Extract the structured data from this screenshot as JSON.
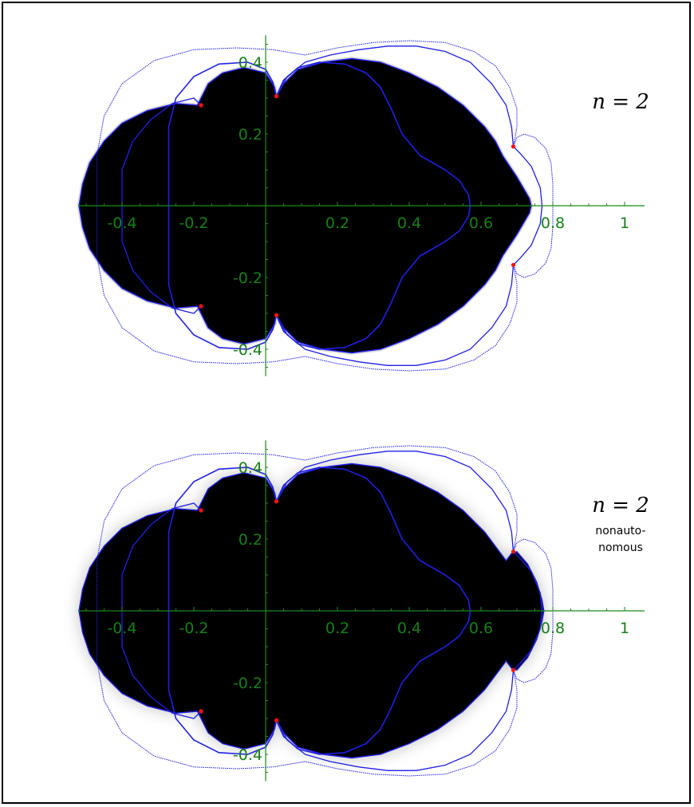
{
  "chart_data": [
    {
      "type": "scatter",
      "panel": "top",
      "label_lines": [
        "n = 2"
      ],
      "x_ticks": [
        -0.4,
        -0.2,
        0.2,
        0.4,
        0.6,
        0.8,
        1
      ],
      "x_tick_labels": [
        "-0.4",
        "-0.2",
        "0.2",
        "0.4",
        "0.6",
        "0.8",
        "1"
      ],
      "y_ticks": [
        0.4,
        0.2,
        -0.2,
        -0.4
      ],
      "y_tick_labels": [
        "0.4",
        "0.2",
        "-0.2",
        "-0.4"
      ],
      "xlim": [
        -0.52,
        1.04
      ],
      "ylim": [
        -0.47,
        0.47
      ],
      "grid": false,
      "curve_color": "#1f1fe6",
      "point_color": "#ff1010",
      "axis_color": "#1a8a1a",
      "fill_color": "#000000",
      "critical_points": [
        {
          "x": -0.18,
          "y": 0.28
        },
        {
          "x": -0.18,
          "y": -0.28
        },
        {
          "x": 0.03,
          "y": 0.305
        },
        {
          "x": 0.03,
          "y": -0.305
        },
        {
          "x": 0.69,
          "y": 0.165
        },
        {
          "x": 0.69,
          "y": -0.165
        }
      ]
    },
    {
      "type": "scatter",
      "panel": "bottom",
      "label_lines": [
        "n = 2",
        "nonauto-",
        "nomous"
      ],
      "x_ticks": [
        -0.4,
        -0.2,
        0.2,
        0.4,
        0.6,
        0.8,
        1
      ],
      "x_tick_labels": [
        "-0.4",
        "-0.2",
        "0.2",
        "0.4",
        "0.6",
        "0.8",
        "1"
      ],
      "y_ticks": [
        0.4,
        0.2,
        -0.2,
        -0.4
      ],
      "y_tick_labels": [
        "0.4",
        "0.2",
        "-0.2",
        "-0.4"
      ],
      "xlim": [
        -0.52,
        1.04
      ],
      "ylim": [
        -0.47,
        0.47
      ],
      "grid": false,
      "curve_color": "#1f1fe6",
      "point_color": "#ff1010",
      "axis_color": "#1a8a1a",
      "fill_color": "#000000",
      "critical_points": [
        {
          "x": -0.18,
          "y": 0.28
        },
        {
          "x": -0.18,
          "y": -0.28
        },
        {
          "x": 0.03,
          "y": 0.305
        },
        {
          "x": 0.03,
          "y": -0.305
        },
        {
          "x": 0.69,
          "y": 0.165
        },
        {
          "x": 0.69,
          "y": -0.165
        }
      ]
    }
  ]
}
